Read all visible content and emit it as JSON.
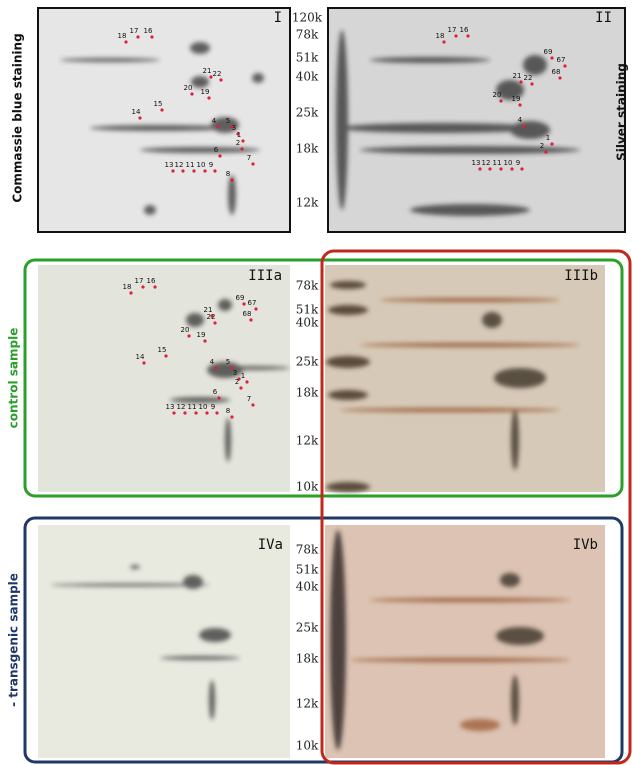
{
  "side_labels": {
    "top_left": "Commassie blue staining",
    "top_right": "Silver staining",
    "middle_left": "control sample",
    "bottom_left": "- transgenic sample"
  },
  "panels": [
    {
      "label": "I",
      "spots": [
        "18",
        "17",
        "16",
        "21",
        "22",
        "20",
        "19",
        "15",
        "14",
        "4",
        "5",
        "3",
        "1",
        "2",
        "6",
        "7",
        "13",
        "12",
        "11",
        "10",
        "9",
        "8"
      ]
    },
    {
      "label": "II",
      "spots": [
        "18",
        "17",
        "16",
        "69",
        "67",
        "68",
        "21",
        "22",
        "20",
        "19",
        "4",
        "1",
        "2",
        "13",
        "12",
        "11",
        "10",
        "9"
      ]
    },
    {
      "label": "IIIa",
      "spots": [
        "18",
        "17",
        "16",
        "69",
        "67",
        "68",
        "21",
        "22",
        "20",
        "19",
        "15",
        "14",
        "4",
        "5",
        "3",
        "1",
        "2",
        "6",
        "7",
        "13",
        "12",
        "11",
        "10",
        "9",
        "8"
      ]
    },
    {
      "label": "IIIb",
      "spots": []
    },
    {
      "label": "IVa",
      "spots": []
    },
    {
      "label": "IVb",
      "spots": []
    }
  ],
  "mass_markers": [
    [
      "120k",
      "78k",
      "51k",
      "40k",
      "25k",
      "18k",
      "12k"
    ],
    [
      "78k",
      "51k",
      "40k",
      "25k",
      "18k",
      "12k",
      "10k"
    ],
    [
      "78k",
      "51k",
      "40k",
      "25k",
      "18k",
      "12k",
      "10k"
    ]
  ]
}
